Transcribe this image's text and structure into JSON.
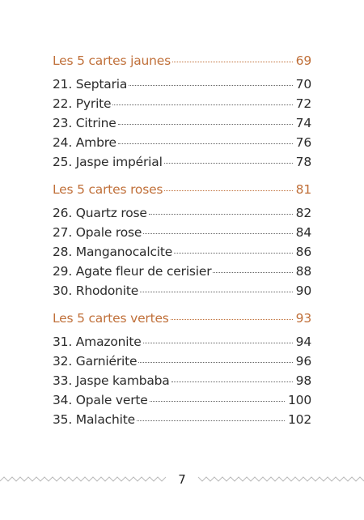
{
  "sections": [
    {
      "title": "Les 5 cartes jaunes",
      "page": 69,
      "entries": [
        {
          "label": "21. Septaria",
          "page": 70
        },
        {
          "label": "22. Pyrite",
          "page": 72
        },
        {
          "label": "23. Citrine",
          "page": 74
        },
        {
          "label": "24. Ambre",
          "page": 76
        },
        {
          "label": "25. Jaspe impérial",
          "page": 78
        }
      ]
    },
    {
      "title": "Les 5 cartes roses",
      "page": 81,
      "entries": [
        {
          "label": "26. Quartz rose",
          "page": 82
        },
        {
          "label": "27. Opale rose",
          "page": 84
        },
        {
          "label": "28. Manganocalcite",
          "page": 86
        },
        {
          "label": "29. Agate fleur de cerisier",
          "page": 88
        },
        {
          "label": "30. Rhodonite",
          "page": 90
        }
      ]
    },
    {
      "title": "Les 5 cartes vertes",
      "page": 93,
      "entries": [
        {
          "label": "31. Amazonite",
          "page": 94
        },
        {
          "label": "32. Garniérite",
          "page": 96
        },
        {
          "label": "33. Jaspe kambaba",
          "page": 98
        },
        {
          "label": "34. Opale verte",
          "page": 100
        },
        {
          "label": "35. Malachite",
          "page": 102
        }
      ]
    }
  ],
  "footer": {
    "page_number": 7
  }
}
